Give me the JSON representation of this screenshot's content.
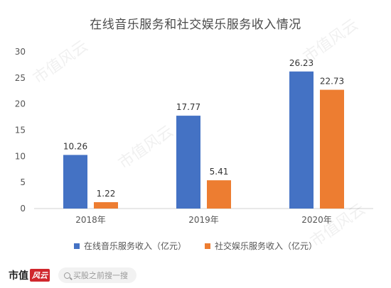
{
  "chart_data": {
    "type": "bar",
    "title": "在线音乐服务和社交娱乐服务收入情况",
    "categories": [
      "2018年",
      "2019年",
      "2020年"
    ],
    "series": [
      {
        "name": "在线音乐服务收入（亿元）",
        "values": [
          10.26,
          17.77,
          26.23
        ],
        "color": "#4472c4"
      },
      {
        "name": "社交娱乐服务收入（亿元）",
        "values": [
          1.22,
          5.41,
          22.73
        ],
        "color": "#ed7d31"
      }
    ],
    "ylim": [
      0,
      30
    ],
    "yticks": [
      0,
      5,
      10,
      15,
      20,
      25,
      30
    ],
    "grid": false,
    "legend": "bottom"
  },
  "footer": {
    "brand_text": "市值",
    "brand_badge": "风云",
    "search_placeholder": "买股之前搜一搜"
  },
  "watermark_text": "市值风云"
}
